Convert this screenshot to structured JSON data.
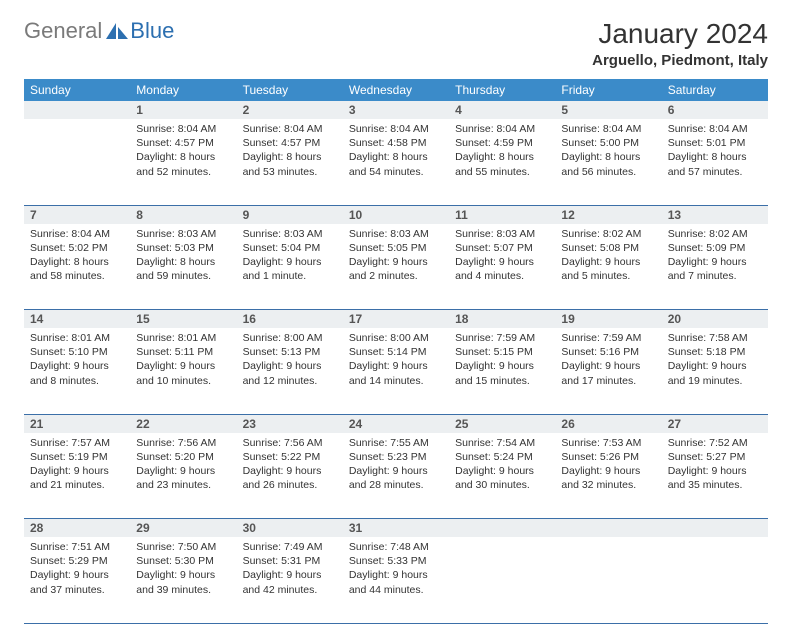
{
  "logo": {
    "gray": "General",
    "blue": "Blue"
  },
  "title": "January 2024",
  "location": "Arguello, Piedmont, Italy",
  "colors": {
    "header_bg": "#3b8bc9",
    "daynum_bg": "#eceff1",
    "rule": "#3b6fa8"
  },
  "weekdays": [
    "Sunday",
    "Monday",
    "Tuesday",
    "Wednesday",
    "Thursday",
    "Friday",
    "Saturday"
  ],
  "weeks": [
    [
      null,
      {
        "n": "1",
        "sr": "Sunrise: 8:04 AM",
        "ss": "Sunset: 4:57 PM",
        "d1": "Daylight: 8 hours",
        "d2": "and 52 minutes."
      },
      {
        "n": "2",
        "sr": "Sunrise: 8:04 AM",
        "ss": "Sunset: 4:57 PM",
        "d1": "Daylight: 8 hours",
        "d2": "and 53 minutes."
      },
      {
        "n": "3",
        "sr": "Sunrise: 8:04 AM",
        "ss": "Sunset: 4:58 PM",
        "d1": "Daylight: 8 hours",
        "d2": "and 54 minutes."
      },
      {
        "n": "4",
        "sr": "Sunrise: 8:04 AM",
        "ss": "Sunset: 4:59 PM",
        "d1": "Daylight: 8 hours",
        "d2": "and 55 minutes."
      },
      {
        "n": "5",
        "sr": "Sunrise: 8:04 AM",
        "ss": "Sunset: 5:00 PM",
        "d1": "Daylight: 8 hours",
        "d2": "and 56 minutes."
      },
      {
        "n": "6",
        "sr": "Sunrise: 8:04 AM",
        "ss": "Sunset: 5:01 PM",
        "d1": "Daylight: 8 hours",
        "d2": "and 57 minutes."
      }
    ],
    [
      {
        "n": "7",
        "sr": "Sunrise: 8:04 AM",
        "ss": "Sunset: 5:02 PM",
        "d1": "Daylight: 8 hours",
        "d2": "and 58 minutes."
      },
      {
        "n": "8",
        "sr": "Sunrise: 8:03 AM",
        "ss": "Sunset: 5:03 PM",
        "d1": "Daylight: 8 hours",
        "d2": "and 59 minutes."
      },
      {
        "n": "9",
        "sr": "Sunrise: 8:03 AM",
        "ss": "Sunset: 5:04 PM",
        "d1": "Daylight: 9 hours",
        "d2": "and 1 minute."
      },
      {
        "n": "10",
        "sr": "Sunrise: 8:03 AM",
        "ss": "Sunset: 5:05 PM",
        "d1": "Daylight: 9 hours",
        "d2": "and 2 minutes."
      },
      {
        "n": "11",
        "sr": "Sunrise: 8:03 AM",
        "ss": "Sunset: 5:07 PM",
        "d1": "Daylight: 9 hours",
        "d2": "and 4 minutes."
      },
      {
        "n": "12",
        "sr": "Sunrise: 8:02 AM",
        "ss": "Sunset: 5:08 PM",
        "d1": "Daylight: 9 hours",
        "d2": "and 5 minutes."
      },
      {
        "n": "13",
        "sr": "Sunrise: 8:02 AM",
        "ss": "Sunset: 5:09 PM",
        "d1": "Daylight: 9 hours",
        "d2": "and 7 minutes."
      }
    ],
    [
      {
        "n": "14",
        "sr": "Sunrise: 8:01 AM",
        "ss": "Sunset: 5:10 PM",
        "d1": "Daylight: 9 hours",
        "d2": "and 8 minutes."
      },
      {
        "n": "15",
        "sr": "Sunrise: 8:01 AM",
        "ss": "Sunset: 5:11 PM",
        "d1": "Daylight: 9 hours",
        "d2": "and 10 minutes."
      },
      {
        "n": "16",
        "sr": "Sunrise: 8:00 AM",
        "ss": "Sunset: 5:13 PM",
        "d1": "Daylight: 9 hours",
        "d2": "and 12 minutes."
      },
      {
        "n": "17",
        "sr": "Sunrise: 8:00 AM",
        "ss": "Sunset: 5:14 PM",
        "d1": "Daylight: 9 hours",
        "d2": "and 14 minutes."
      },
      {
        "n": "18",
        "sr": "Sunrise: 7:59 AM",
        "ss": "Sunset: 5:15 PM",
        "d1": "Daylight: 9 hours",
        "d2": "and 15 minutes."
      },
      {
        "n": "19",
        "sr": "Sunrise: 7:59 AM",
        "ss": "Sunset: 5:16 PM",
        "d1": "Daylight: 9 hours",
        "d2": "and 17 minutes."
      },
      {
        "n": "20",
        "sr": "Sunrise: 7:58 AM",
        "ss": "Sunset: 5:18 PM",
        "d1": "Daylight: 9 hours",
        "d2": "and 19 minutes."
      }
    ],
    [
      {
        "n": "21",
        "sr": "Sunrise: 7:57 AM",
        "ss": "Sunset: 5:19 PM",
        "d1": "Daylight: 9 hours",
        "d2": "and 21 minutes."
      },
      {
        "n": "22",
        "sr": "Sunrise: 7:56 AM",
        "ss": "Sunset: 5:20 PM",
        "d1": "Daylight: 9 hours",
        "d2": "and 23 minutes."
      },
      {
        "n": "23",
        "sr": "Sunrise: 7:56 AM",
        "ss": "Sunset: 5:22 PM",
        "d1": "Daylight: 9 hours",
        "d2": "and 26 minutes."
      },
      {
        "n": "24",
        "sr": "Sunrise: 7:55 AM",
        "ss": "Sunset: 5:23 PM",
        "d1": "Daylight: 9 hours",
        "d2": "and 28 minutes."
      },
      {
        "n": "25",
        "sr": "Sunrise: 7:54 AM",
        "ss": "Sunset: 5:24 PM",
        "d1": "Daylight: 9 hours",
        "d2": "and 30 minutes."
      },
      {
        "n": "26",
        "sr": "Sunrise: 7:53 AM",
        "ss": "Sunset: 5:26 PM",
        "d1": "Daylight: 9 hours",
        "d2": "and 32 minutes."
      },
      {
        "n": "27",
        "sr": "Sunrise: 7:52 AM",
        "ss": "Sunset: 5:27 PM",
        "d1": "Daylight: 9 hours",
        "d2": "and 35 minutes."
      }
    ],
    [
      {
        "n": "28",
        "sr": "Sunrise: 7:51 AM",
        "ss": "Sunset: 5:29 PM",
        "d1": "Daylight: 9 hours",
        "d2": "and 37 minutes."
      },
      {
        "n": "29",
        "sr": "Sunrise: 7:50 AM",
        "ss": "Sunset: 5:30 PM",
        "d1": "Daylight: 9 hours",
        "d2": "and 39 minutes."
      },
      {
        "n": "30",
        "sr": "Sunrise: 7:49 AM",
        "ss": "Sunset: 5:31 PM",
        "d1": "Daylight: 9 hours",
        "d2": "and 42 minutes."
      },
      {
        "n": "31",
        "sr": "Sunrise: 7:48 AM",
        "ss": "Sunset: 5:33 PM",
        "d1": "Daylight: 9 hours",
        "d2": "and 44 minutes."
      },
      null,
      null,
      null
    ]
  ]
}
